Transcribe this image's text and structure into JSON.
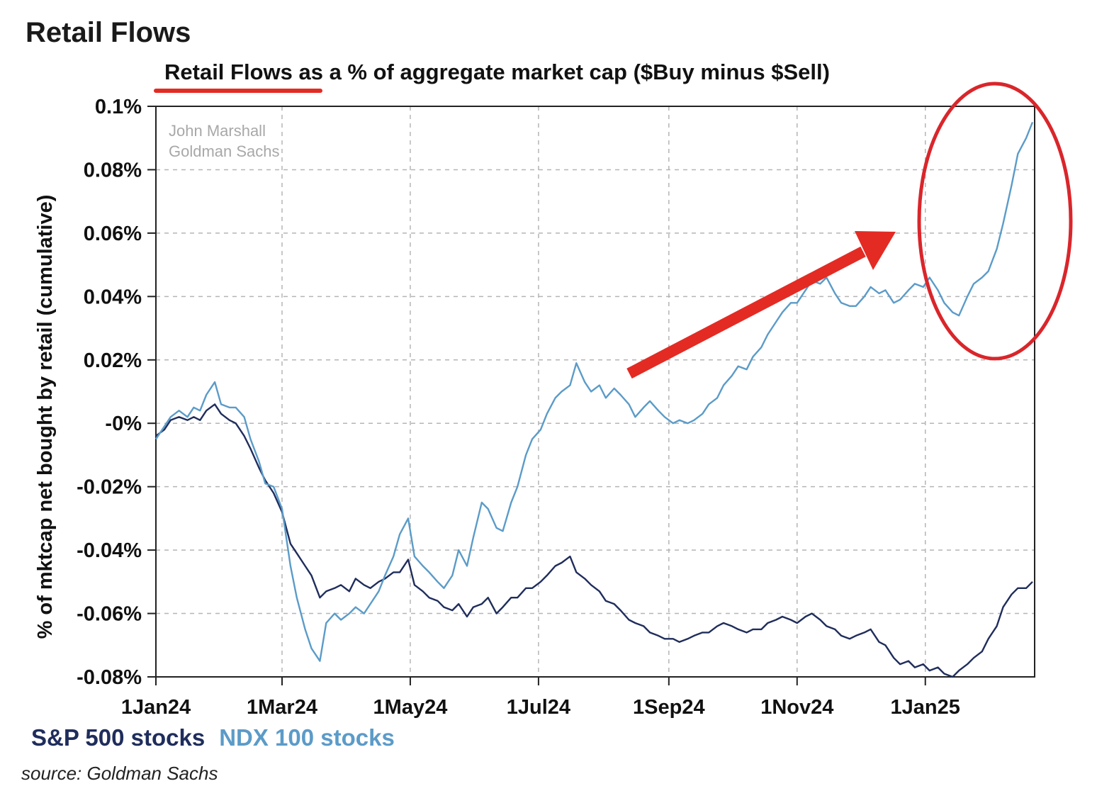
{
  "page": {
    "title": "Retail Flows",
    "source": "source: Goldman Sachs"
  },
  "chart_data": {
    "type": "line",
    "title": "Retail Flows as a % of aggregate market cap ($Buy minus $Sell)",
    "title_underlined_part": "Retail Flows",
    "title_rest": " as a % of aggregate market cap ($Buy minus $Sell)",
    "ylabel": "% of mktcap net bought by retail (cumulative)",
    "xlabel": "",
    "ylim": [
      -0.08,
      0.1
    ],
    "xlim": [
      "2024-01-01",
      "2025-02-22"
    ],
    "y_ticks": [
      {
        "value": 0.1,
        "label": "0.1%"
      },
      {
        "value": 0.08,
        "label": "0.08%"
      },
      {
        "value": 0.06,
        "label": "0.06%"
      },
      {
        "value": 0.04,
        "label": "0.04%"
      },
      {
        "value": 0.02,
        "label": "0.02%"
      },
      {
        "value": 0.0,
        "label": "-0%"
      },
      {
        "value": -0.02,
        "label": "-0.02%"
      },
      {
        "value": -0.04,
        "label": "-0.04%"
      },
      {
        "value": -0.06,
        "label": "-0.06%"
      },
      {
        "value": -0.08,
        "label": "-0.08%"
      }
    ],
    "x_ticks": [
      {
        "value": "2024-01-01",
        "label": "1Jan24"
      },
      {
        "value": "2024-03-01",
        "label": "1Mar24"
      },
      {
        "value": "2024-05-01",
        "label": "1May24"
      },
      {
        "value": "2024-07-01",
        "label": "1Jul24"
      },
      {
        "value": "2024-09-01",
        "label": "1Sep24"
      },
      {
        "value": "2024-11-01",
        "label": "1Nov24"
      },
      {
        "value": "2025-01-01",
        "label": "1Jan25"
      }
    ],
    "grid": true,
    "legend_position": "bottom-left",
    "watermark": [
      "John Marshall",
      "Goldman Sachs"
    ],
    "series": [
      {
        "name": "S&P 500 stocks",
        "color": "#1f2d5c",
        "points": [
          [
            "2024-01-01",
            -0.004
          ],
          [
            "2024-01-05",
            -0.002
          ],
          [
            "2024-01-08",
            0.001
          ],
          [
            "2024-01-12",
            0.002
          ],
          [
            "2024-01-16",
            0.001
          ],
          [
            "2024-01-19",
            0.002
          ],
          [
            "2024-01-22",
            0.001
          ],
          [
            "2024-01-25",
            0.004
          ],
          [
            "2024-01-29",
            0.006
          ],
          [
            "2024-02-01",
            0.003
          ],
          [
            "2024-02-05",
            0.001
          ],
          [
            "2024-02-08",
            0.0
          ],
          [
            "2024-02-12",
            -0.004
          ],
          [
            "2024-02-15",
            -0.008
          ],
          [
            "2024-02-19",
            -0.014
          ],
          [
            "2024-02-22",
            -0.018
          ],
          [
            "2024-02-26",
            -0.022
          ],
          [
            "2024-03-01",
            -0.028
          ],
          [
            "2024-03-05",
            -0.038
          ],
          [
            "2024-03-08",
            -0.041
          ],
          [
            "2024-03-12",
            -0.045
          ],
          [
            "2024-03-15",
            -0.048
          ],
          [
            "2024-03-19",
            -0.055
          ],
          [
            "2024-03-22",
            -0.053
          ],
          [
            "2024-03-26",
            -0.052
          ],
          [
            "2024-03-29",
            -0.051
          ],
          [
            "2024-04-02",
            -0.053
          ],
          [
            "2024-04-05",
            -0.049
          ],
          [
            "2024-04-09",
            -0.051
          ],
          [
            "2024-04-12",
            -0.052
          ],
          [
            "2024-04-16",
            -0.05
          ],
          [
            "2024-04-19",
            -0.049
          ],
          [
            "2024-04-23",
            -0.047
          ],
          [
            "2024-04-26",
            -0.047
          ],
          [
            "2024-04-30",
            -0.043
          ],
          [
            "2024-05-03",
            -0.051
          ],
          [
            "2024-05-07",
            -0.053
          ],
          [
            "2024-05-10",
            -0.055
          ],
          [
            "2024-05-14",
            -0.056
          ],
          [
            "2024-05-17",
            -0.058
          ],
          [
            "2024-05-21",
            -0.059
          ],
          [
            "2024-05-24",
            -0.057
          ],
          [
            "2024-05-28",
            -0.061
          ],
          [
            "2024-05-31",
            -0.058
          ],
          [
            "2024-06-04",
            -0.057
          ],
          [
            "2024-06-07",
            -0.055
          ],
          [
            "2024-06-11",
            -0.06
          ],
          [
            "2024-06-14",
            -0.058
          ],
          [
            "2024-06-18",
            -0.055
          ],
          [
            "2024-06-21",
            -0.055
          ],
          [
            "2024-06-25",
            -0.052
          ],
          [
            "2024-06-28",
            -0.052
          ],
          [
            "2024-07-02",
            -0.05
          ],
          [
            "2024-07-05",
            -0.048
          ],
          [
            "2024-07-09",
            -0.045
          ],
          [
            "2024-07-12",
            -0.044
          ],
          [
            "2024-07-16",
            -0.042
          ],
          [
            "2024-07-19",
            -0.047
          ],
          [
            "2024-07-23",
            -0.049
          ],
          [
            "2024-07-26",
            -0.051
          ],
          [
            "2024-07-30",
            -0.053
          ],
          [
            "2024-08-02",
            -0.056
          ],
          [
            "2024-08-06",
            -0.057
          ],
          [
            "2024-08-09",
            -0.059
          ],
          [
            "2024-08-13",
            -0.062
          ],
          [
            "2024-08-16",
            -0.063
          ],
          [
            "2024-08-20",
            -0.064
          ],
          [
            "2024-08-23",
            -0.066
          ],
          [
            "2024-08-27",
            -0.067
          ],
          [
            "2024-08-30",
            -0.068
          ],
          [
            "2024-09-03",
            -0.068
          ],
          [
            "2024-09-06",
            -0.069
          ],
          [
            "2024-09-10",
            -0.068
          ],
          [
            "2024-09-13",
            -0.067
          ],
          [
            "2024-09-17",
            -0.066
          ],
          [
            "2024-09-20",
            -0.066
          ],
          [
            "2024-09-24",
            -0.064
          ],
          [
            "2024-09-27",
            -0.063
          ],
          [
            "2024-10-01",
            -0.064
          ],
          [
            "2024-10-04",
            -0.065
          ],
          [
            "2024-10-08",
            -0.066
          ],
          [
            "2024-10-11",
            -0.065
          ],
          [
            "2024-10-15",
            -0.065
          ],
          [
            "2024-10-18",
            -0.063
          ],
          [
            "2024-10-22",
            -0.062
          ],
          [
            "2024-10-25",
            -0.061
          ],
          [
            "2024-10-29",
            -0.062
          ],
          [
            "2024-11-01",
            -0.063
          ],
          [
            "2024-11-05",
            -0.061
          ],
          [
            "2024-11-08",
            -0.06
          ],
          [
            "2024-11-12",
            -0.062
          ],
          [
            "2024-11-15",
            -0.064
          ],
          [
            "2024-11-19",
            -0.065
          ],
          [
            "2024-11-22",
            -0.067
          ],
          [
            "2024-11-26",
            -0.068
          ],
          [
            "2024-11-29",
            -0.067
          ],
          [
            "2024-12-03",
            -0.066
          ],
          [
            "2024-12-06",
            -0.065
          ],
          [
            "2024-12-10",
            -0.069
          ],
          [
            "2024-12-13",
            -0.07
          ],
          [
            "2024-12-17",
            -0.074
          ],
          [
            "2024-12-20",
            -0.076
          ],
          [
            "2024-12-24",
            -0.075
          ],
          [
            "2024-12-27",
            -0.077
          ],
          [
            "2024-12-31",
            -0.076
          ],
          [
            "2025-01-03",
            -0.078
          ],
          [
            "2025-01-07",
            -0.077
          ],
          [
            "2025-01-10",
            -0.079
          ],
          [
            "2025-01-14",
            -0.08
          ],
          [
            "2025-01-17",
            -0.078
          ],
          [
            "2025-01-21",
            -0.076
          ],
          [
            "2025-01-24",
            -0.074
          ],
          [
            "2025-01-28",
            -0.072
          ],
          [
            "2025-01-31",
            -0.068
          ],
          [
            "2025-02-04",
            -0.064
          ],
          [
            "2025-02-07",
            -0.058
          ],
          [
            "2025-02-11",
            -0.054
          ],
          [
            "2025-02-14",
            -0.052
          ],
          [
            "2025-02-18",
            -0.052
          ],
          [
            "2025-02-21",
            -0.05
          ]
        ]
      },
      {
        "name": "NDX 100 stocks",
        "color": "#5b9bc8",
        "points": [
          [
            "2024-01-01",
            -0.005
          ],
          [
            "2024-01-05",
            -0.001
          ],
          [
            "2024-01-08",
            0.002
          ],
          [
            "2024-01-12",
            0.004
          ],
          [
            "2024-01-16",
            0.002
          ],
          [
            "2024-01-19",
            0.005
          ],
          [
            "2024-01-22",
            0.004
          ],
          [
            "2024-01-25",
            0.009
          ],
          [
            "2024-01-29",
            0.013
          ],
          [
            "2024-02-01",
            0.006
          ],
          [
            "2024-02-05",
            0.005
          ],
          [
            "2024-02-08",
            0.005
          ],
          [
            "2024-02-12",
            0.002
          ],
          [
            "2024-02-15",
            -0.005
          ],
          [
            "2024-02-19",
            -0.012
          ],
          [
            "2024-02-22",
            -0.019
          ],
          [
            "2024-02-26",
            -0.02
          ],
          [
            "2024-03-01",
            -0.027
          ],
          [
            "2024-03-05",
            -0.045
          ],
          [
            "2024-03-08",
            -0.055
          ],
          [
            "2024-03-12",
            -0.065
          ],
          [
            "2024-03-15",
            -0.071
          ],
          [
            "2024-03-19",
            -0.075
          ],
          [
            "2024-03-22",
            -0.063
          ],
          [
            "2024-03-26",
            -0.06
          ],
          [
            "2024-03-29",
            -0.062
          ],
          [
            "2024-04-02",
            -0.06
          ],
          [
            "2024-04-05",
            -0.058
          ],
          [
            "2024-04-09",
            -0.06
          ],
          [
            "2024-04-12",
            -0.057
          ],
          [
            "2024-04-16",
            -0.053
          ],
          [
            "2024-04-19",
            -0.048
          ],
          [
            "2024-04-23",
            -0.042
          ],
          [
            "2024-04-26",
            -0.035
          ],
          [
            "2024-04-30",
            -0.03
          ],
          [
            "2024-05-03",
            -0.042
          ],
          [
            "2024-05-07",
            -0.045
          ],
          [
            "2024-05-10",
            -0.047
          ],
          [
            "2024-05-14",
            -0.05
          ],
          [
            "2024-05-17",
            -0.052
          ],
          [
            "2024-05-21",
            -0.048
          ],
          [
            "2024-05-24",
            -0.04
          ],
          [
            "2024-05-28",
            -0.045
          ],
          [
            "2024-05-31",
            -0.036
          ],
          [
            "2024-06-04",
            -0.025
          ],
          [
            "2024-06-07",
            -0.027
          ],
          [
            "2024-06-11",
            -0.033
          ],
          [
            "2024-06-14",
            -0.034
          ],
          [
            "2024-06-18",
            -0.025
          ],
          [
            "2024-06-21",
            -0.02
          ],
          [
            "2024-06-25",
            -0.01
          ],
          [
            "2024-06-28",
            -0.005
          ],
          [
            "2024-07-02",
            -0.002
          ],
          [
            "2024-07-05",
            0.003
          ],
          [
            "2024-07-09",
            0.008
          ],
          [
            "2024-07-12",
            0.01
          ],
          [
            "2024-07-16",
            0.012
          ],
          [
            "2024-07-19",
            0.019
          ],
          [
            "2024-07-23",
            0.013
          ],
          [
            "2024-07-26",
            0.01
          ],
          [
            "2024-07-30",
            0.012
          ],
          [
            "2024-08-02",
            0.008
          ],
          [
            "2024-08-06",
            0.011
          ],
          [
            "2024-08-09",
            0.009
          ],
          [
            "2024-08-13",
            0.006
          ],
          [
            "2024-08-16",
            0.002
          ],
          [
            "2024-08-20",
            0.005
          ],
          [
            "2024-08-23",
            0.007
          ],
          [
            "2024-08-27",
            0.004
          ],
          [
            "2024-08-30",
            0.002
          ],
          [
            "2024-09-03",
            0.0
          ],
          [
            "2024-09-06",
            0.001
          ],
          [
            "2024-09-10",
            0.0
          ],
          [
            "2024-09-13",
            0.001
          ],
          [
            "2024-09-17",
            0.003
          ],
          [
            "2024-09-20",
            0.006
          ],
          [
            "2024-09-24",
            0.008
          ],
          [
            "2024-09-27",
            0.012
          ],
          [
            "2024-10-01",
            0.015
          ],
          [
            "2024-10-04",
            0.018
          ],
          [
            "2024-10-08",
            0.017
          ],
          [
            "2024-10-11",
            0.021
          ],
          [
            "2024-10-15",
            0.024
          ],
          [
            "2024-10-18",
            0.028
          ],
          [
            "2024-10-22",
            0.032
          ],
          [
            "2024-10-25",
            0.035
          ],
          [
            "2024-10-29",
            0.038
          ],
          [
            "2024-11-01",
            0.038
          ],
          [
            "2024-11-05",
            0.042
          ],
          [
            "2024-11-08",
            0.045
          ],
          [
            "2024-11-12",
            0.044
          ],
          [
            "2024-11-15",
            0.046
          ],
          [
            "2024-11-19",
            0.041
          ],
          [
            "2024-11-22",
            0.038
          ],
          [
            "2024-11-26",
            0.037
          ],
          [
            "2024-11-29",
            0.037
          ],
          [
            "2024-12-03",
            0.04
          ],
          [
            "2024-12-06",
            0.043
          ],
          [
            "2024-12-10",
            0.041
          ],
          [
            "2024-12-13",
            0.042
          ],
          [
            "2024-12-17",
            0.038
          ],
          [
            "2024-12-20",
            0.039
          ],
          [
            "2024-12-24",
            0.042
          ],
          [
            "2024-12-27",
            0.044
          ],
          [
            "2024-12-31",
            0.043
          ],
          [
            "2025-01-03",
            0.046
          ],
          [
            "2025-01-07",
            0.042
          ],
          [
            "2025-01-10",
            0.038
          ],
          [
            "2025-01-14",
            0.035
          ],
          [
            "2025-01-17",
            0.034
          ],
          [
            "2025-01-21",
            0.04
          ],
          [
            "2025-01-24",
            0.044
          ],
          [
            "2025-01-28",
            0.046
          ],
          [
            "2025-01-31",
            0.048
          ],
          [
            "2025-02-04",
            0.055
          ],
          [
            "2025-02-07",
            0.063
          ],
          [
            "2025-02-11",
            0.075
          ],
          [
            "2025-02-14",
            0.085
          ],
          [
            "2025-02-18",
            0.09
          ],
          [
            "2025-02-21",
            0.095
          ]
        ]
      }
    ]
  }
}
